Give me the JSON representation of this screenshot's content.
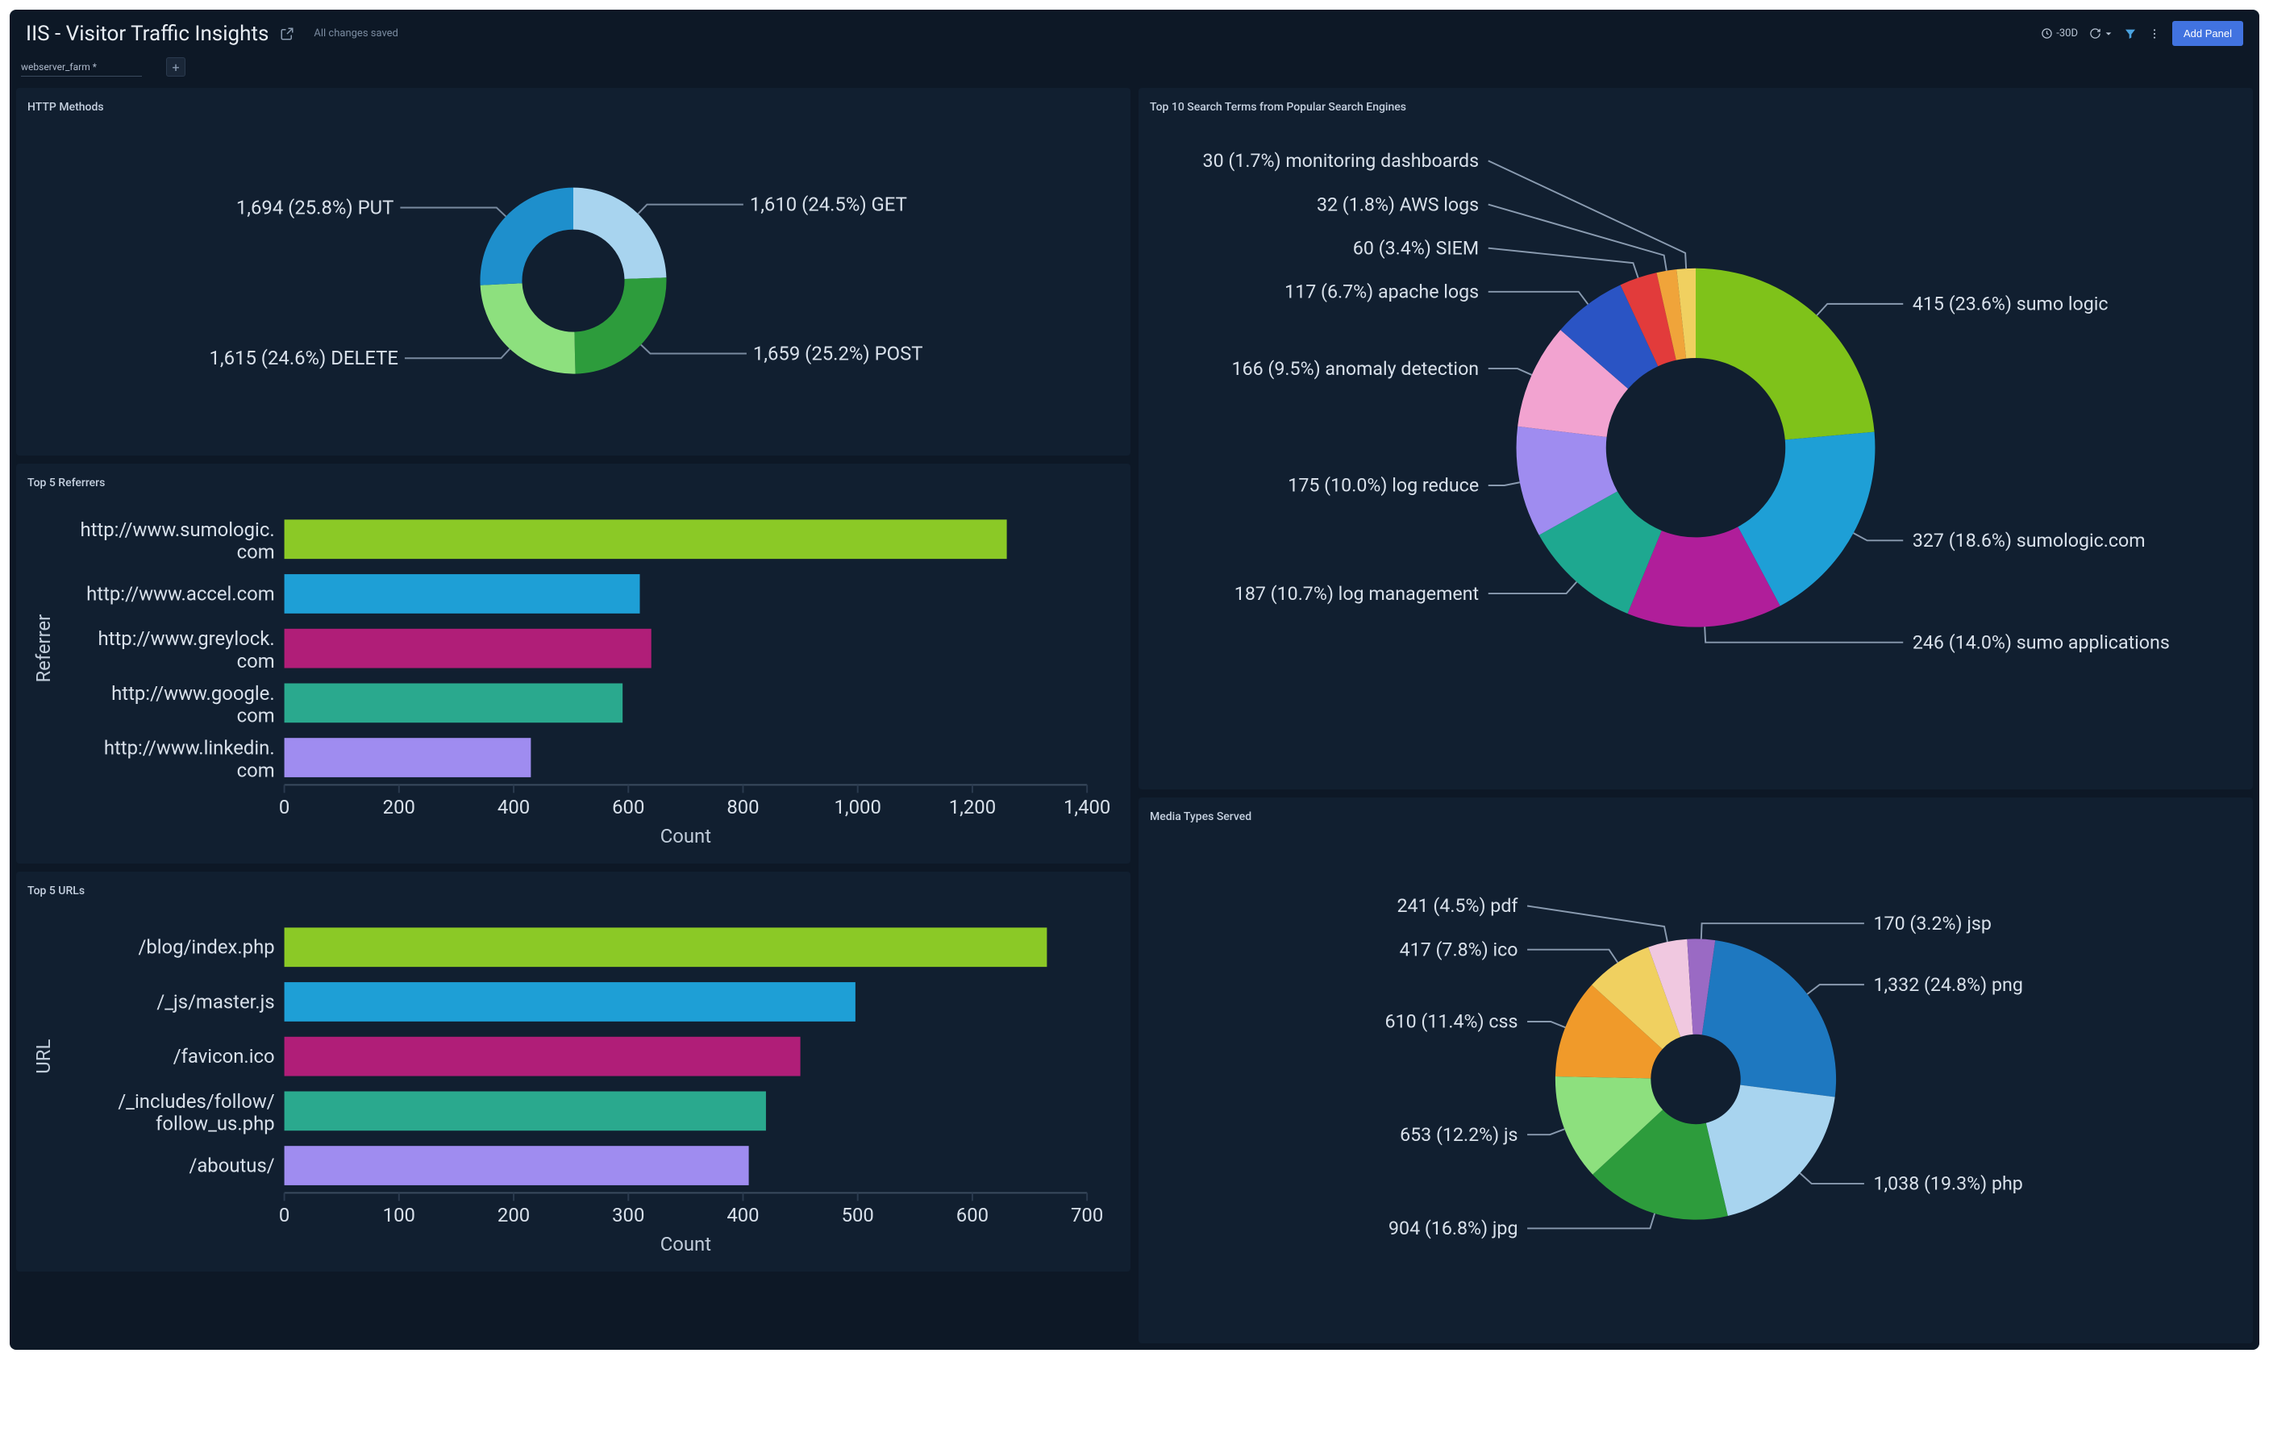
{
  "header": {
    "title": "IIS - Visitor Traffic Insights",
    "save_status": "All changes saved",
    "time_range": "-30D",
    "add_panel_label": "Add Panel"
  },
  "filter": {
    "chip_label": "webserver_farm  *"
  },
  "panels": {
    "http_methods": {
      "title": "HTTP Methods",
      "type": "donut",
      "inner_ratio": 0.55,
      "slices": [
        {
          "label": "1,610 (24.5%) GET",
          "value": 24.5,
          "color": "#a8d4ef"
        },
        {
          "label": "1,659 (25.2%) POST",
          "value": 25.2,
          "color": "#2d9c3c"
        },
        {
          "label": "1,615 (24.6%) DELETE",
          "value": 24.6,
          "color": "#8de07e"
        },
        {
          "label": "1,694 (25.8%) PUT",
          "value": 25.8,
          "color": "#1e8fcc"
        }
      ]
    },
    "referrers": {
      "title": "Top 5 Referrers",
      "type": "hbar",
      "x_title": "Count",
      "y_title": "Referrer",
      "x_max": 1400,
      "x_step": 200,
      "bars": [
        {
          "label": "http://www.sumologic.com",
          "value": 1260,
          "color": "#8bc926"
        },
        {
          "label": "http://www.accel.com",
          "value": 620,
          "color": "#1e9fd6"
        },
        {
          "label": "http://www.greylock.com",
          "value": 640,
          "color": "#b01e78"
        },
        {
          "label": "http://www.google.com",
          "value": 590,
          "color": "#2aa98e"
        },
        {
          "label": "http://www.linkedin.com",
          "value": 430,
          "color": "#9f8cf0"
        }
      ]
    },
    "urls": {
      "title": "Top 5 URLs",
      "type": "hbar",
      "x_title": "Count",
      "y_title": "URL",
      "x_max": 700,
      "x_step": 100,
      "bars": [
        {
          "label": "/blog/index.php",
          "value": 665,
          "color": "#8bc926"
        },
        {
          "label": "/_js/master.js",
          "value": 498,
          "color": "#1e9fd6"
        },
        {
          "label": "/favicon.ico",
          "value": 450,
          "color": "#b01e78"
        },
        {
          "label": "/_includes/follow/follow_us.php",
          "value": 420,
          "color": "#2aa98e"
        },
        {
          "label": "/aboutus/",
          "value": 405,
          "color": "#9f8cf0"
        }
      ]
    },
    "search_terms": {
      "title": "Top 10 Search Terms from Popular Search Engines",
      "type": "donut",
      "inner_ratio": 0.5,
      "slices": [
        {
          "label": "415 (23.6%) sumo logic",
          "value": 23.6,
          "color": "#7fc21a"
        },
        {
          "label": "327 (18.6%) sumologic.com",
          "value": 18.6,
          "color": "#1e9fd6"
        },
        {
          "label": "246 (14.0%) sumo applications",
          "value": 14.0,
          "color": "#b01e9a"
        },
        {
          "label": "187 (10.7%) log management",
          "value": 10.7,
          "color": "#1ea890"
        },
        {
          "label": "175 (10.0%) log reduce",
          "value": 10.0,
          "color": "#9f8cf0"
        },
        {
          "label": "166 (9.5%) anomaly detection",
          "value": 9.5,
          "color": "#f2a3d0"
        },
        {
          "label": "117 (6.7%) apache logs",
          "value": 6.7,
          "color": "#2a54c4"
        },
        {
          "label": "60 (3.4%) SIEM",
          "value": 3.4,
          "color": "#e23b3b"
        },
        {
          "label": "32 (1.8%) AWS logs",
          "value": 1.8,
          "color": "#f0a43a"
        },
        {
          "label": "30 (1.7%) monitoring dashboards",
          "value": 1.7,
          "color": "#f0d060"
        }
      ]
    },
    "media_types": {
      "title": "Media Types Served",
      "type": "donut",
      "inner_ratio": 0.32,
      "slices": [
        {
          "label": "1,332 (24.8%) png",
          "value": 24.8,
          "color": "#1e78c0"
        },
        {
          "label": "1,038 (19.3%) php",
          "value": 19.3,
          "color": "#a8d4ef"
        },
        {
          "label": "904 (16.8%) jpg",
          "value": 16.8,
          "color": "#2d9c3c"
        },
        {
          "label": "653 (12.2%) js",
          "value": 12.2,
          "color": "#8de07e"
        },
        {
          "label": "610 (11.4%) css",
          "value": 11.4,
          "color": "#f09a2a"
        },
        {
          "label": "417 (7.8%) ico",
          "value": 7.8,
          "color": "#f0d060"
        },
        {
          "label": "241 (4.5%) pdf",
          "value": 4.5,
          "color": "#f0c8e0"
        },
        {
          "label": "170 (3.2%) jsp",
          "value": 3.2,
          "color": "#9a6ac4"
        }
      ]
    }
  }
}
